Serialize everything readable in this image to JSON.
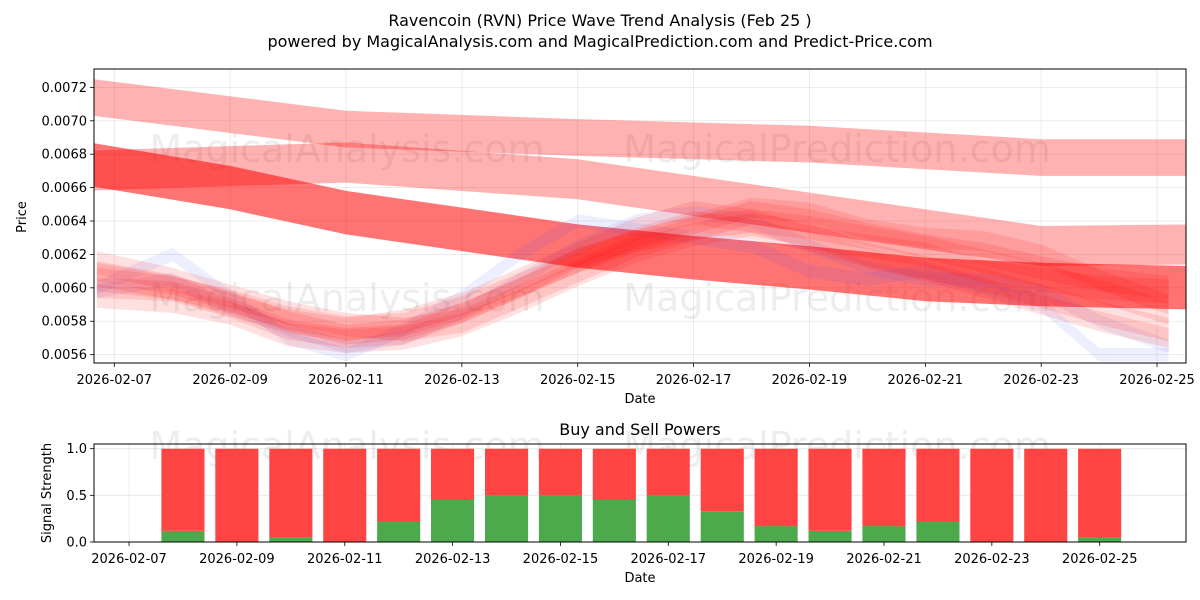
{
  "title_line1": "Ravencoin (RVN) Price Wave Trend Analysis (Feb 25 )",
  "title_line2": "powered by MagicalAnalysis.com and MagicalPrediction.com and Predict-Price.com",
  "watermarks": [
    "MagicalAnalysis.com",
    "MagicalPrediction.com"
  ],
  "colors": {
    "red": "#ff0000",
    "blue": "#3c50ff",
    "buy": "#4caa4c",
    "sell": "#ff4444"
  },
  "chart_data": [
    {
      "type": "area",
      "title": "",
      "xlabel": "Date",
      "ylabel": "Price",
      "xlim": [
        -0.35,
        18.5
      ],
      "ylim": [
        0.00555,
        0.00731
      ],
      "grid": true,
      "x_ticks": [
        {
          "x": 0,
          "label": "2026-02-07"
        },
        {
          "x": 2,
          "label": "2026-02-09"
        },
        {
          "x": 4,
          "label": "2026-02-11"
        },
        {
          "x": 6,
          "label": "2026-02-13"
        },
        {
          "x": 8,
          "label": "2026-02-15"
        },
        {
          "x": 10,
          "label": "2026-02-17"
        },
        {
          "x": 12,
          "label": "2026-02-19"
        },
        {
          "x": 14,
          "label": "2026-02-21"
        },
        {
          "x": 16,
          "label": "2026-02-23"
        },
        {
          "x": 18,
          "label": "2026-02-25"
        }
      ],
      "y_ticks": [
        {
          "y": 0.0056,
          "label": "0.0056"
        },
        {
          "y": 0.0058,
          "label": "0.0058"
        },
        {
          "y": 0.006,
          "label": "0.0060"
        },
        {
          "y": 0.0062,
          "label": "0.0062"
        },
        {
          "y": 0.0064,
          "label": "0.0064"
        },
        {
          "y": 0.0066,
          "label": "0.0066"
        },
        {
          "y": 0.0068,
          "label": "0.0068"
        },
        {
          "y": 0.007,
          "label": "0.0070"
        },
        {
          "y": 0.0072,
          "label": "0.0072"
        }
      ],
      "bands": [
        {
          "name": "trend-band-upper",
          "color": "red",
          "opacity": 0.3,
          "halfwidth": 0.00011,
          "x": [
            -0.6,
            4,
            8,
            12,
            16,
            18.6
          ],
          "y": [
            0.00715,
            0.00695,
            0.0069,
            0.00686,
            0.00678,
            0.00678
          ]
        },
        {
          "name": "trend-band-middle",
          "color": "red",
          "opacity": 0.55,
          "halfwidth": 0.00013,
          "x": [
            -0.6,
            2,
            4,
            6,
            8,
            10,
            12,
            14,
            16,
            18.6
          ],
          "y": [
            0.00675,
            0.0066,
            0.00645,
            0.00635,
            0.00625,
            0.00618,
            0.00612,
            0.00605,
            0.00602,
            0.006
          ]
        },
        {
          "name": "trend-band-lower",
          "color": "red",
          "opacity": 0.3,
          "halfwidth": 0.00012,
          "x": [
            -0.6,
            4,
            8,
            12,
            16,
            18.6
          ],
          "y": [
            0.0067,
            0.00675,
            0.00665,
            0.00645,
            0.00625,
            0.00626
          ]
        }
      ],
      "waves": [
        {
          "color": "blue",
          "opacity": 0.09,
          "halfwidth": 4e-05,
          "x": [
            -0.3,
            1,
            2,
            3,
            4,
            5,
            6,
            7,
            8,
            9,
            10,
            11,
            12,
            13,
            14,
            15,
            16,
            17,
            18.2
          ],
          "y": [
            0.006,
            0.0062,
            0.00595,
            0.0057,
            0.0056,
            0.00575,
            0.00595,
            0.0062,
            0.0064,
            0.00635,
            0.0063,
            0.00625,
            0.0061,
            0.00605,
            0.0061,
            0.006,
            0.0059,
            0.0056,
            0.0056
          ]
        },
        {
          "color": "blue",
          "opacity": 0.09,
          "halfwidth": 4e-05,
          "x": [
            -0.3,
            1,
            2,
            3,
            4,
            5,
            6,
            7,
            8,
            9,
            10,
            11,
            12,
            13,
            14,
            15,
            16,
            17,
            18.2
          ],
          "y": [
            0.00598,
            0.00605,
            0.00588,
            0.00575,
            0.00565,
            0.0057,
            0.00585,
            0.00605,
            0.00625,
            0.0064,
            0.00645,
            0.0064,
            0.00625,
            0.00612,
            0.00605,
            0.00605,
            0.00598,
            0.0058,
            0.00565
          ]
        },
        {
          "color": "red",
          "opacity": 0.12,
          "halfwidth": 7e-05,
          "x": [
            -0.3,
            1,
            2,
            3,
            4,
            5,
            6,
            7,
            8,
            9,
            10,
            11,
            12,
            13,
            14,
            15,
            16,
            17,
            18.2
          ],
          "y": [
            0.00608,
            0.006,
            0.0059,
            0.0058,
            0.00575,
            0.0058,
            0.0059,
            0.00605,
            0.0062,
            0.00635,
            0.00645,
            0.0064,
            0.0063,
            0.00625,
            0.0062,
            0.0061,
            0.00605,
            0.006,
            0.00598
          ]
        },
        {
          "color": "red",
          "opacity": 0.12,
          "halfwidth": 7e-05,
          "x": [
            -0.3,
            1,
            2,
            3,
            4,
            5,
            6,
            7,
            8,
            9,
            10,
            11,
            12,
            13,
            14,
            15,
            16,
            17,
            18.2
          ],
          "y": [
            0.00615,
            0.00605,
            0.00595,
            0.00585,
            0.00578,
            0.00575,
            0.0058,
            0.00595,
            0.0061,
            0.00625,
            0.00635,
            0.00645,
            0.0064,
            0.00632,
            0.00625,
            0.0062,
            0.00612,
            0.00605,
            0.006
          ]
        },
        {
          "color": "red",
          "opacity": 0.12,
          "halfwidth": 6e-05,
          "x": [
            -0.3,
            1,
            2,
            3,
            4,
            5,
            6,
            7,
            8,
            9,
            10,
            11,
            12,
            13,
            14,
            15,
            16,
            17,
            18.2
          ],
          "y": [
            0.006,
            0.00598,
            0.00588,
            0.00575,
            0.0057,
            0.00572,
            0.00585,
            0.006,
            0.00618,
            0.00628,
            0.00638,
            0.00648,
            0.00645,
            0.00635,
            0.0063,
            0.00628,
            0.0062,
            0.00605,
            0.0059
          ]
        },
        {
          "color": "red",
          "opacity": 0.12,
          "halfwidth": 7e-05,
          "x": [
            -0.3,
            1,
            2,
            3,
            4,
            5,
            6,
            7,
            8,
            9,
            10,
            11,
            12,
            13,
            14,
            15,
            16,
            17,
            18.2
          ],
          "y": [
            0.00595,
            0.00592,
            0.00585,
            0.00572,
            0.00568,
            0.0057,
            0.00578,
            0.00592,
            0.00608,
            0.00622,
            0.00632,
            0.00638,
            0.00632,
            0.0062,
            0.00612,
            0.00605,
            0.00595,
            0.00585,
            0.00575
          ]
        },
        {
          "color": "red",
          "opacity": 0.12,
          "halfwidth": 6e-05,
          "x": [
            -0.3,
            1,
            2,
            3,
            4,
            5,
            6,
            7,
            8,
            9,
            10,
            11,
            12,
            13,
            14,
            15,
            16,
            17,
            18.2
          ],
          "y": [
            0.0061,
            0.00602,
            0.00592,
            0.0058,
            0.00572,
            0.00575,
            0.00585,
            0.006,
            0.00615,
            0.0063,
            0.0064,
            0.00635,
            0.00628,
            0.00618,
            0.0061,
            0.006,
            0.0059,
            0.0058,
            0.0057
          ]
        },
        {
          "color": "red",
          "opacity": 0.12,
          "halfwidth": 7e-05,
          "x": [
            -0.3,
            1,
            2,
            3,
            4,
            5,
            6,
            7,
            8,
            9,
            10,
            11,
            12,
            13,
            14,
            15,
            16,
            17,
            18.2
          ],
          "y": [
            0.00605,
            0.006,
            0.00592,
            0.00582,
            0.00576,
            0.00578,
            0.00588,
            0.00602,
            0.00616,
            0.00628,
            0.00636,
            0.0064,
            0.00636,
            0.0063,
            0.00624,
            0.00616,
            0.00608,
            0.00598,
            0.00585
          ]
        }
      ]
    },
    {
      "type": "bar",
      "title": "Buy and Sell Powers",
      "xlabel": "Date",
      "ylabel": "Signal Strength",
      "xlim": [
        -0.65,
        19.6
      ],
      "ylim": [
        0,
        1.05
      ],
      "grid": true,
      "x_ticks": [
        {
          "x": 0,
          "label": "2026-02-07"
        },
        {
          "x": 2,
          "label": "2026-02-09"
        },
        {
          "x": 4,
          "label": "2026-02-11"
        },
        {
          "x": 6,
          "label": "2026-02-13"
        },
        {
          "x": 8,
          "label": "2026-02-15"
        },
        {
          "x": 10,
          "label": "2026-02-17"
        },
        {
          "x": 12,
          "label": "2026-02-19"
        },
        {
          "x": 14,
          "label": "2026-02-21"
        },
        {
          "x": 16,
          "label": "2026-02-23"
        },
        {
          "x": 18,
          "label": "2026-02-25"
        }
      ],
      "y_ticks": [
        {
          "y": 0.0,
          "label": "0.0"
        },
        {
          "y": 0.5,
          "label": "0.5"
        },
        {
          "y": 1.0,
          "label": "1.0"
        }
      ],
      "x": [
        1,
        2,
        3,
        4,
        5,
        6,
        7,
        8,
        9,
        10,
        11,
        12,
        13,
        14,
        15,
        16,
        17,
        18
      ],
      "series": [
        {
          "name": "Buy",
          "color": "buy",
          "values": [
            0.12,
            0.0,
            0.05,
            0.0,
            0.22,
            0.45,
            0.5,
            0.5,
            0.45,
            0.5,
            0.33,
            0.17,
            0.12,
            0.17,
            0.22,
            0.0,
            0.0,
            0.05
          ]
        },
        {
          "name": "Sell",
          "color": "sell",
          "values": [
            0.88,
            1.0,
            0.95,
            1.0,
            0.78,
            0.55,
            0.5,
            0.5,
            0.55,
            0.5,
            0.67,
            0.83,
            0.88,
            0.83,
            0.78,
            1.0,
            1.0,
            0.95
          ]
        }
      ]
    }
  ]
}
